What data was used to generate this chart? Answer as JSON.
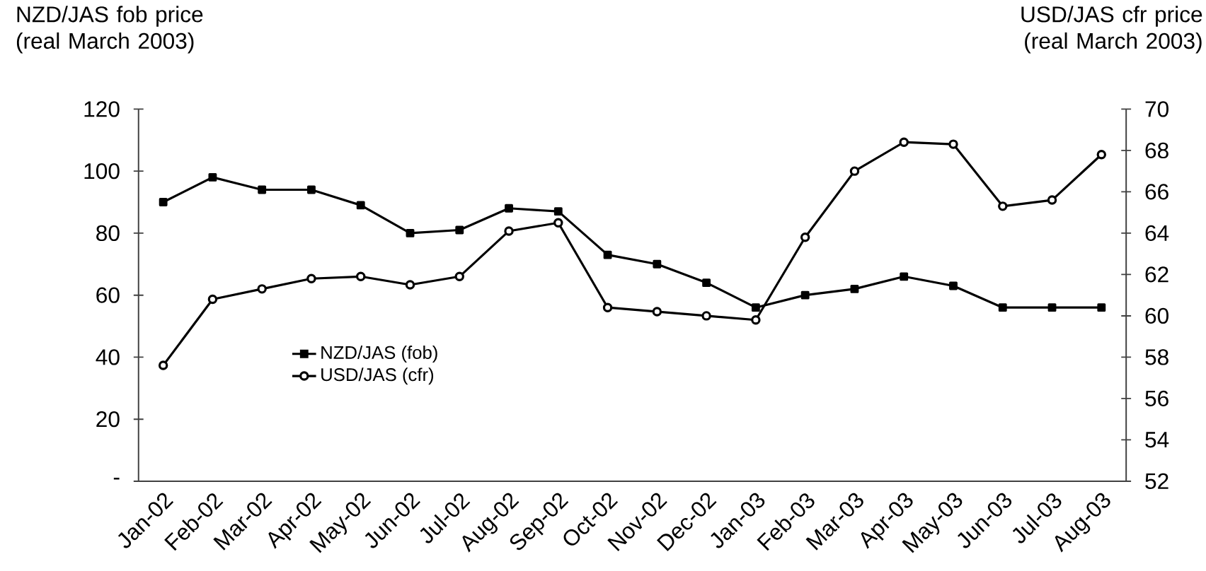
{
  "chart_data": {
    "type": "line",
    "ylabel": "NZD/JAS fob price (real March 2003)",
    "y2label": "USD/JAS cfr price (real March 2003)",
    "categories": [
      "Jan-02",
      "Feb-02",
      "Mar-02",
      "Apr-02",
      "May-02",
      "Jun-02",
      "Jul-02",
      "Aug-02",
      "Sep-02",
      "Oct-02",
      "Nov-02",
      "Dec-02",
      "Jan-03",
      "Feb-03",
      "Mar-03",
      "Apr-03",
      "May-03",
      "Jun-03",
      "Jul-03",
      "Aug-03"
    ],
    "series": [
      {
        "name": "NZD/JAS (fob)",
        "color": "#000000",
        "marker": "square",
        "values": [
          90,
          98,
          94,
          94,
          89,
          80,
          81,
          88,
          87,
          73,
          70,
          64,
          56,
          60,
          62,
          66,
          63,
          56,
          56,
          56
        ]
      },
      {
        "name": "USD/JAS (cfr)",
        "color": "#000000",
        "marker": "circle",
        "axis": "y2",
        "values": [
          57.6,
          60.8,
          61.3,
          61.8,
          61.9,
          61.5,
          61.9,
          64.1,
          64.5,
          60.4,
          60.2,
          60.0,
          59.8,
          63.8,
          67.0,
          68.4,
          68.3,
          65.3,
          65.6,
          67.8
        ]
      }
    ],
    "ylim": [
      0,
      120
    ],
    "yticks": [
      {
        "value": 0,
        "label": "-"
      },
      20,
      40,
      60,
      80,
      100,
      120
    ],
    "y2lim": [
      52,
      70
    ],
    "y2ticks": [
      52,
      54,
      56,
      58,
      60,
      62,
      64,
      66,
      68,
      70
    ],
    "grid": false,
    "legend": "left",
    "line_style": "solid"
  }
}
